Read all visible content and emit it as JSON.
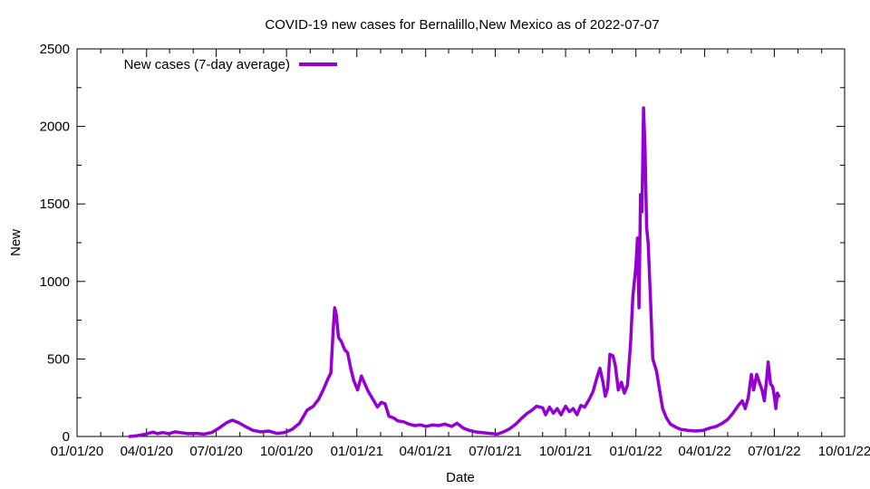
{
  "chart_data": {
    "type": "line",
    "title": "COVID-19 new cases for Bernalillo,New Mexico as of 2022-07-07",
    "xlabel": "Date",
    "ylabel": "New",
    "x_axis": {
      "type": "date",
      "range": [
        "2020-01-01",
        "2022-10-01"
      ],
      "ticks": [
        {
          "date": "2020-01-01",
          "label": "01/01/20"
        },
        {
          "date": "2020-04-01",
          "label": "04/01/20"
        },
        {
          "date": "2020-07-01",
          "label": "07/01/20"
        },
        {
          "date": "2020-10-01",
          "label": "10/01/20"
        },
        {
          "date": "2021-01-01",
          "label": "01/01/21"
        },
        {
          "date": "2021-04-01",
          "label": "04/01/21"
        },
        {
          "date": "2021-07-01",
          "label": "07/01/21"
        },
        {
          "date": "2021-10-01",
          "label": "10/01/21"
        },
        {
          "date": "2022-01-01",
          "label": "01/01/22"
        },
        {
          "date": "2022-04-01",
          "label": "04/01/22"
        },
        {
          "date": "2022-07-01",
          "label": "07/01/22"
        },
        {
          "date": "2022-10-01",
          "label": "10/01/22"
        }
      ]
    },
    "y_axis": {
      "range": [
        0,
        2500
      ],
      "ticks": [
        {
          "value": 0,
          "label": "0"
        },
        {
          "value": 500,
          "label": "500"
        },
        {
          "value": 1000,
          "label": "1000"
        },
        {
          "value": 1500,
          "label": "1500"
        },
        {
          "value": 2000,
          "label": "2000"
        },
        {
          "value": 2500,
          "label": "2500"
        }
      ]
    },
    "grid": false,
    "legend": {
      "position": "top-left",
      "entries": [
        "New cases (7-day average)"
      ]
    },
    "series": [
      {
        "name": "New cases (7-day average)",
        "color": "#9400d3",
        "points": [
          [
            "2020-03-10",
            0
          ],
          [
            "2020-03-20",
            5
          ],
          [
            "2020-03-28",
            12
          ],
          [
            "2020-04-05",
            22
          ],
          [
            "2020-04-10",
            28
          ],
          [
            "2020-04-15",
            18
          ],
          [
            "2020-04-22",
            25
          ],
          [
            "2020-04-30",
            18
          ],
          [
            "2020-05-08",
            30
          ],
          [
            "2020-05-15",
            25
          ],
          [
            "2020-05-25",
            18
          ],
          [
            "2020-06-05",
            20
          ],
          [
            "2020-06-15",
            15
          ],
          [
            "2020-06-25",
            25
          ],
          [
            "2020-07-05",
            55
          ],
          [
            "2020-07-15",
            90
          ],
          [
            "2020-07-22",
            105
          ],
          [
            "2020-07-30",
            90
          ],
          [
            "2020-08-08",
            65
          ],
          [
            "2020-08-18",
            40
          ],
          [
            "2020-08-28",
            30
          ],
          [
            "2020-09-08",
            35
          ],
          [
            "2020-09-18",
            20
          ],
          [
            "2020-09-28",
            25
          ],
          [
            "2020-10-08",
            45
          ],
          [
            "2020-10-18",
            85
          ],
          [
            "2020-10-28",
            170
          ],
          [
            "2020-11-05",
            195
          ],
          [
            "2020-11-12",
            240
          ],
          [
            "2020-11-18",
            300
          ],
          [
            "2020-11-24",
            370
          ],
          [
            "2020-11-28",
            410
          ],
          [
            "2020-12-01",
            680
          ],
          [
            "2020-12-03",
            830
          ],
          [
            "2020-12-05",
            790
          ],
          [
            "2020-12-08",
            640
          ],
          [
            "2020-12-12",
            610
          ],
          [
            "2020-12-16",
            560
          ],
          [
            "2020-12-20",
            540
          ],
          [
            "2020-12-24",
            440
          ],
          [
            "2020-12-28",
            360
          ],
          [
            "2021-01-02",
            300
          ],
          [
            "2021-01-07",
            390
          ],
          [
            "2021-01-11",
            345
          ],
          [
            "2021-01-16",
            290
          ],
          [
            "2021-01-22",
            240
          ],
          [
            "2021-01-28",
            190
          ],
          [
            "2021-02-02",
            220
          ],
          [
            "2021-02-07",
            210
          ],
          [
            "2021-02-12",
            130
          ],
          [
            "2021-02-18",
            120
          ],
          [
            "2021-02-24",
            100
          ],
          [
            "2021-03-03",
            95
          ],
          [
            "2021-03-10",
            80
          ],
          [
            "2021-03-18",
            70
          ],
          [
            "2021-03-25",
            75
          ],
          [
            "2021-04-02",
            65
          ],
          [
            "2021-04-10",
            75
          ],
          [
            "2021-04-18",
            70
          ],
          [
            "2021-04-26",
            80
          ],
          [
            "2021-05-05",
            65
          ],
          [
            "2021-05-12",
            85
          ],
          [
            "2021-05-20",
            55
          ],
          [
            "2021-05-28",
            40
          ],
          [
            "2021-06-05",
            30
          ],
          [
            "2021-06-14",
            25
          ],
          [
            "2021-06-24",
            20
          ],
          [
            "2021-07-04",
            15
          ],
          [
            "2021-07-12",
            30
          ],
          [
            "2021-07-20",
            50
          ],
          [
            "2021-07-28",
            80
          ],
          [
            "2021-08-05",
            120
          ],
          [
            "2021-08-12",
            150
          ],
          [
            "2021-08-18",
            170
          ],
          [
            "2021-08-24",
            195
          ],
          [
            "2021-09-01",
            185
          ],
          [
            "2021-09-05",
            140
          ],
          [
            "2021-09-10",
            190
          ],
          [
            "2021-09-15",
            150
          ],
          [
            "2021-09-20",
            180
          ],
          [
            "2021-09-25",
            140
          ],
          [
            "2021-10-01",
            195
          ],
          [
            "2021-10-06",
            160
          ],
          [
            "2021-10-11",
            180
          ],
          [
            "2021-10-16",
            140
          ],
          [
            "2021-10-21",
            200
          ],
          [
            "2021-10-26",
            190
          ],
          [
            "2021-11-01",
            240
          ],
          [
            "2021-11-06",
            290
          ],
          [
            "2021-11-11",
            380
          ],
          [
            "2021-11-15",
            440
          ],
          [
            "2021-11-19",
            350
          ],
          [
            "2021-11-22",
            260
          ],
          [
            "2021-11-25",
            310
          ],
          [
            "2021-11-28",
            530
          ],
          [
            "2021-12-02",
            520
          ],
          [
            "2021-12-05",
            460
          ],
          [
            "2021-12-09",
            300
          ],
          [
            "2021-12-13",
            350
          ],
          [
            "2021-12-17",
            280
          ],
          [
            "2021-12-21",
            330
          ],
          [
            "2021-12-25",
            600
          ],
          [
            "2021-12-28",
            900
          ],
          [
            "2022-01-01",
            1100
          ],
          [
            "2022-01-03",
            1280
          ],
          [
            "2022-01-05",
            830
          ],
          [
            "2022-01-07",
            1560
          ],
          [
            "2022-01-09",
            1450
          ],
          [
            "2022-01-11",
            2120
          ],
          [
            "2022-01-13",
            1850
          ],
          [
            "2022-01-15",
            1350
          ],
          [
            "2022-01-17",
            1250
          ],
          [
            "2022-01-20",
            900
          ],
          [
            "2022-01-23",
            500
          ],
          [
            "2022-01-28",
            420
          ],
          [
            "2022-02-01",
            300
          ],
          [
            "2022-02-05",
            180
          ],
          [
            "2022-02-10",
            120
          ],
          [
            "2022-02-15",
            80
          ],
          [
            "2022-02-22",
            60
          ],
          [
            "2022-03-01",
            45
          ],
          [
            "2022-03-10",
            40
          ],
          [
            "2022-03-20",
            35
          ],
          [
            "2022-03-30",
            40
          ],
          [
            "2022-04-08",
            55
          ],
          [
            "2022-04-16",
            65
          ],
          [
            "2022-04-24",
            85
          ],
          [
            "2022-05-01",
            110
          ],
          [
            "2022-05-08",
            150
          ],
          [
            "2022-05-15",
            200
          ],
          [
            "2022-05-20",
            230
          ],
          [
            "2022-05-24",
            180
          ],
          [
            "2022-05-28",
            250
          ],
          [
            "2022-06-01",
            400
          ],
          [
            "2022-06-04",
            300
          ],
          [
            "2022-06-08",
            400
          ],
          [
            "2022-06-12",
            340
          ],
          [
            "2022-06-15",
            300
          ],
          [
            "2022-06-18",
            230
          ],
          [
            "2022-06-21",
            370
          ],
          [
            "2022-06-23",
            480
          ],
          [
            "2022-06-26",
            340
          ],
          [
            "2022-06-29",
            320
          ],
          [
            "2022-07-01",
            260
          ],
          [
            "2022-07-03",
            180
          ],
          [
            "2022-07-05",
            280
          ],
          [
            "2022-07-07",
            260
          ]
        ]
      }
    ]
  }
}
